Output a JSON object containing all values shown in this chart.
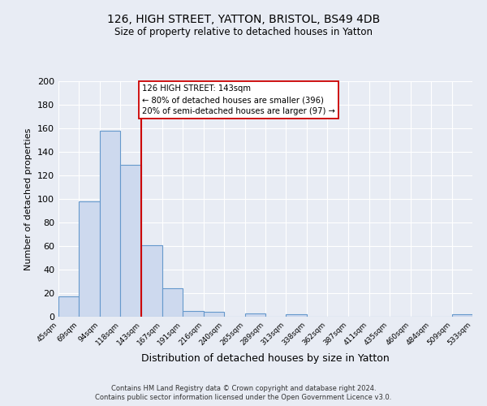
{
  "title": "126, HIGH STREET, YATTON, BRISTOL, BS49 4DB",
  "subtitle": "Size of property relative to detached houses in Yatton",
  "xlabel": "Distribution of detached houses by size in Yatton",
  "ylabel": "Number of detached properties",
  "bin_edges": [
    45,
    69,
    94,
    118,
    143,
    167,
    191,
    216,
    240,
    265,
    289,
    313,
    338,
    362,
    387,
    411,
    435,
    460,
    484,
    509,
    533
  ],
  "bar_heights": [
    17,
    98,
    158,
    129,
    61,
    24,
    5,
    4,
    0,
    3,
    0,
    2,
    0,
    0,
    0,
    0,
    0,
    0,
    0,
    2
  ],
  "bar_color": "#cdd9ee",
  "bar_edge_color": "#6699cc",
  "property_line_x": 143,
  "property_line_color": "#cc0000",
  "ylim": [
    0,
    200
  ],
  "yticks": [
    0,
    20,
    40,
    60,
    80,
    100,
    120,
    140,
    160,
    180,
    200
  ],
  "annotation_box_text": "126 HIGH STREET: 143sqm\n← 80% of detached houses are smaller (396)\n20% of semi-detached houses are larger (97) →",
  "annotation_box_color": "#cc0000",
  "background_color": "#e8ecf4",
  "plot_bg_color": "#e8ecf4",
  "footer_line1": "Contains HM Land Registry data © Crown copyright and database right 2024.",
  "footer_line2": "Contains public sector information licensed under the Open Government Licence v3.0."
}
